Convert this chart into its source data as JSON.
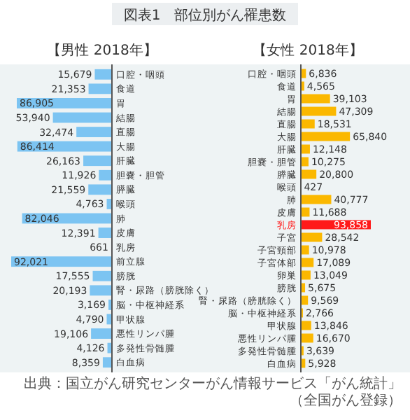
{
  "chart_data": [
    {
      "type": "bar",
      "orientation": "horizontal",
      "title": "図表1　部位別がん罹患数",
      "subtitle": "【男性 2018年】",
      "color": "#7cc4f2",
      "categories": [
        "口腔・咽頭",
        "食道",
        "胃",
        "結腸",
        "直腸",
        "大腸",
        "肝臓",
        "胆嚢・胆管",
        "膵臓",
        "喉頭",
        "肺",
        "皮膚",
        "乳房",
        "前立腺",
        "膀胱",
        "腎・尿路（膀胱除く）",
        "脳・中枢神経系",
        "甲状腺",
        "悪性リンパ腫",
        "多発性骨髄腫",
        "白血病"
      ],
      "values": [
        15679,
        21353,
        86905,
        53940,
        32474,
        86414,
        26163,
        11926,
        21559,
        4763,
        82046,
        12391,
        661,
        92021,
        17555,
        20193,
        3169,
        4790,
        19106,
        4126,
        8359
      ],
      "value_labels": [
        "15,679",
        "21,353",
        "86,905",
        "53,940",
        "32,474",
        "86,414",
        "26,163",
        "11,926",
        "21,559",
        "4,763",
        "82,046",
        "12,391",
        "661",
        "92,021",
        "17,555",
        "20,193",
        "3,169",
        "4,790",
        "19,106",
        "4,126",
        "8,359"
      ]
    },
    {
      "type": "bar",
      "orientation": "horizontal",
      "subtitle": "【女性 2018年】",
      "categories": [
        "口腔・咽頭",
        "食道",
        "胃",
        "結腸",
        "直腸",
        "大腸",
        "肝臓",
        "胆嚢・胆管",
        "膵臓",
        "喉頭",
        "肺",
        "皮膚",
        "乳房",
        "子宮",
        "子宮頸部",
        "子宮体部",
        "卵巣",
        "膀胱",
        "腎・尿路（膀胱除く）",
        "脳・中枢神経系",
        "甲状腺",
        "悪性リンパ腫",
        "多発性骨髄腫",
        "白血病"
      ],
      "values": [
        6836,
        4565,
        39103,
        47309,
        18531,
        65840,
        12148,
        10275,
        20800,
        427,
        40777,
        11688,
        93858,
        28542,
        10978,
        17089,
        13049,
        5675,
        9569,
        2766,
        13846,
        16670,
        3639,
        5928
      ],
      "value_labels": [
        "6,836",
        "4,565",
        "39,103",
        "47,309",
        "18,531",
        "65,840",
        "12,148",
        "10,275",
        "20,800",
        "427",
        "40,777",
        "11,688",
        "93,858",
        "28,542",
        "10,978",
        "17,089",
        "13,049",
        "5,675",
        "9,569",
        "2,766",
        "13,846",
        "16,670",
        "3,639",
        "5,928"
      ],
      "colors": [
        "#fbb800",
        "#fbb800",
        "#fbb800",
        "#fbb800",
        "#fbb800",
        "#fbb800",
        "#fbb800",
        "#fbb800",
        "#fbb800",
        "#fbb800",
        "#fbb800",
        "#fbb800",
        "#ff1a1a",
        "#fbb800",
        "#fbb800",
        "#fbb800",
        "#fbb800",
        "#fbb800",
        "#fbb800",
        "#fbb800",
        "#fbb800",
        "#fbb800",
        "#fbb800",
        "#fbb800"
      ],
      "annotations": [
        "出典：国立がん研究センターがん情報サービス「がん統計」（全国がん登録）"
      ]
    }
  ]
}
